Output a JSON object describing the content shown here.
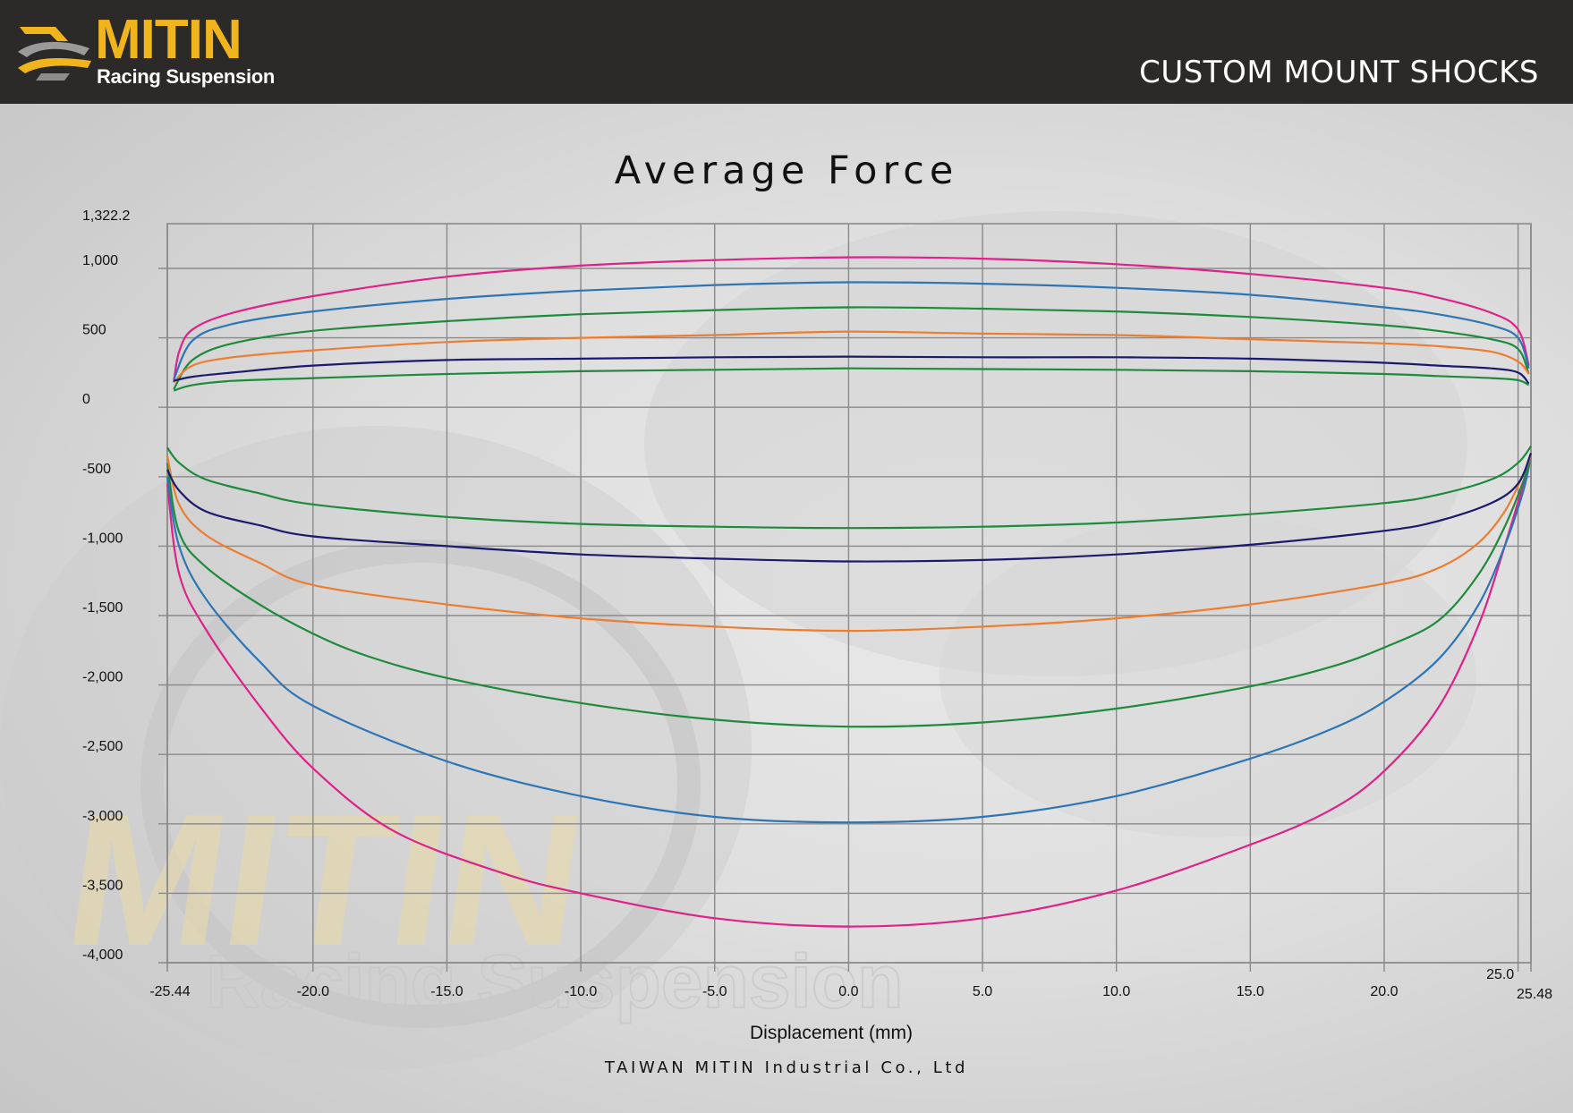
{
  "header": {
    "logo_text": "MITIN",
    "logo_subtext": "Racing Suspension",
    "section_title": "CUSTOM MOUNT SHOCKS"
  },
  "watermark": {
    "text": "MITIN",
    "subtext": "Racing Suspension"
  },
  "footer": {
    "company": "TAIWAN MITIN Industrial Co., Ltd"
  },
  "chart_data": {
    "type": "line",
    "title": "Average Force",
    "xlabel": "Displacement (mm)",
    "ylabel": "",
    "xlim": [
      -25.44,
      25.48
    ],
    "ylim": [
      -4000,
      1322.2
    ],
    "grid": true,
    "legend": "none",
    "x_ticks": [
      {
        "value": -25.44,
        "label": "-25.44"
      },
      {
        "value": -20,
        "label": "-20.0"
      },
      {
        "value": -15,
        "label": "-15.0"
      },
      {
        "value": -10,
        "label": "-10.0"
      },
      {
        "value": -5,
        "label": "-5.0"
      },
      {
        "value": 0,
        "label": "0.0"
      },
      {
        "value": 5,
        "label": "5.0"
      },
      {
        "value": 10,
        "label": "10.0"
      },
      {
        "value": 15,
        "label": "15.0"
      },
      {
        "value": 20,
        "label": "20.0"
      },
      {
        "value": 25,
        "label": "25.0"
      },
      {
        "value": 25.48,
        "label": "25.48"
      }
    ],
    "y_ticks": [
      {
        "value": 1322.2,
        "label": "1,322.2"
      },
      {
        "value": 1000,
        "label": "1,000"
      },
      {
        "value": 500,
        "label": "500"
      },
      {
        "value": 0,
        "label": "0"
      },
      {
        "value": -500,
        "label": "-500"
      },
      {
        "value": -1000,
        "label": "-1,000"
      },
      {
        "value": -1500,
        "label": "-1,500"
      },
      {
        "value": -2000,
        "label": "-2,000"
      },
      {
        "value": -2500,
        "label": "-2,500"
      },
      {
        "value": -3000,
        "label": "-3,000"
      },
      {
        "value": -3500,
        "label": "-3,500"
      },
      {
        "value": -4000,
        "label": "-4,000"
      }
    ],
    "series": [
      {
        "color": "#e0218a",
        "points": [
          [
            -25.2,
            180
          ],
          [
            -25,
            400
          ],
          [
            -24.5,
            560
          ],
          [
            -23,
            680
          ],
          [
            -20,
            800
          ],
          [
            -15,
            940
          ],
          [
            -10,
            1020
          ],
          [
            -5,
            1060
          ],
          [
            0,
            1080
          ],
          [
            5,
            1070
          ],
          [
            10,
            1030
          ],
          [
            15,
            960
          ],
          [
            20,
            860
          ],
          [
            22,
            790
          ],
          [
            24,
            680
          ],
          [
            25,
            560
          ],
          [
            25.4,
            300
          ]
        ]
      },
      {
        "color": "#2e75b6",
        "points": [
          [
            -25.2,
            200
          ],
          [
            -24.5,
            480
          ],
          [
            -23,
            600
          ],
          [
            -20,
            690
          ],
          [
            -15,
            780
          ],
          [
            -10,
            840
          ],
          [
            -5,
            880
          ],
          [
            0,
            900
          ],
          [
            5,
            890
          ],
          [
            10,
            860
          ],
          [
            15,
            810
          ],
          [
            20,
            720
          ],
          [
            22,
            670
          ],
          [
            24,
            590
          ],
          [
            25,
            500
          ],
          [
            25.4,
            280
          ]
        ]
      },
      {
        "color": "#1e8b3c",
        "points": [
          [
            -25.2,
            130
          ],
          [
            -24.5,
            340
          ],
          [
            -23,
            460
          ],
          [
            -20,
            550
          ],
          [
            -15,
            620
          ],
          [
            -10,
            670
          ],
          [
            -5,
            700
          ],
          [
            0,
            720
          ],
          [
            5,
            710
          ],
          [
            10,
            690
          ],
          [
            15,
            650
          ],
          [
            20,
            590
          ],
          [
            22,
            550
          ],
          [
            24,
            490
          ],
          [
            25,
            420
          ],
          [
            25.4,
            240
          ]
        ]
      },
      {
        "color": "#ed7d31",
        "points": [
          [
            -25.2,
            180
          ],
          [
            -24.5,
            300
          ],
          [
            -23,
            360
          ],
          [
            -20,
            410
          ],
          [
            -15,
            470
          ],
          [
            -10,
            500
          ],
          [
            -5,
            520
          ],
          [
            0,
            545
          ],
          [
            5,
            530
          ],
          [
            10,
            520
          ],
          [
            15,
            490
          ],
          [
            20,
            460
          ],
          [
            22,
            440
          ],
          [
            24,
            400
          ],
          [
            25,
            330
          ],
          [
            25.4,
            240
          ]
        ]
      },
      {
        "color": "#1a1a6e",
        "points": [
          [
            -25.2,
            190
          ],
          [
            -24.5,
            220
          ],
          [
            -23,
            250
          ],
          [
            -20,
            300
          ],
          [
            -15,
            340
          ],
          [
            -10,
            350
          ],
          [
            -5,
            360
          ],
          [
            0,
            365
          ],
          [
            5,
            360
          ],
          [
            10,
            360
          ],
          [
            15,
            350
          ],
          [
            20,
            320
          ],
          [
            22,
            300
          ],
          [
            24,
            280
          ],
          [
            25,
            250
          ],
          [
            25.4,
            170
          ]
        ]
      },
      {
        "color": "#1e8b3c",
        "points": [
          [
            -25.2,
            120
          ],
          [
            -24.5,
            160
          ],
          [
            -23,
            190
          ],
          [
            -20,
            210
          ],
          [
            -15,
            240
          ],
          [
            -10,
            260
          ],
          [
            -5,
            270
          ],
          [
            0,
            280
          ],
          [
            5,
            275
          ],
          [
            10,
            270
          ],
          [
            15,
            260
          ],
          [
            20,
            240
          ],
          [
            22,
            225
          ],
          [
            24,
            210
          ],
          [
            25,
            195
          ],
          [
            25.4,
            160
          ]
        ]
      },
      {
        "color": "#e0218a",
        "points": [
          [
            -25.44,
            -550
          ],
          [
            -25,
            -1200
          ],
          [
            -24,
            -1600
          ],
          [
            -22,
            -2150
          ],
          [
            -20,
            -2600
          ],
          [
            -17,
            -3050
          ],
          [
            -13,
            -3350
          ],
          [
            -10,
            -3500
          ],
          [
            -5,
            -3680
          ],
          [
            0,
            -3740
          ],
          [
            5,
            -3680
          ],
          [
            10,
            -3480
          ],
          [
            15,
            -3150
          ],
          [
            18,
            -2900
          ],
          [
            20,
            -2620
          ],
          [
            22,
            -2170
          ],
          [
            23.5,
            -1580
          ],
          [
            24.5,
            -1000
          ],
          [
            25.2,
            -550
          ],
          [
            25.48,
            -350
          ]
        ]
      },
      {
        "color": "#2e75b6",
        "points": [
          [
            -25.44,
            -500
          ],
          [
            -25,
            -1000
          ],
          [
            -24,
            -1380
          ],
          [
            -22,
            -1830
          ],
          [
            -20,
            -2150
          ],
          [
            -15,
            -2550
          ],
          [
            -10,
            -2800
          ],
          [
            -5,
            -2950
          ],
          [
            0,
            -2990
          ],
          [
            5,
            -2950
          ],
          [
            10,
            -2800
          ],
          [
            15,
            -2530
          ],
          [
            18,
            -2320
          ],
          [
            20,
            -2120
          ],
          [
            22,
            -1820
          ],
          [
            23.5,
            -1430
          ],
          [
            24.5,
            -1000
          ],
          [
            25.2,
            -600
          ],
          [
            25.48,
            -350
          ]
        ]
      },
      {
        "color": "#1e8b3c",
        "points": [
          [
            -25.44,
            -400
          ],
          [
            -25,
            -900
          ],
          [
            -24,
            -1150
          ],
          [
            -22,
            -1420
          ],
          [
            -20,
            -1630
          ],
          [
            -18,
            -1790
          ],
          [
            -15,
            -1950
          ],
          [
            -10,
            -2130
          ],
          [
            -5,
            -2250
          ],
          [
            0,
            -2300
          ],
          [
            5,
            -2270
          ],
          [
            10,
            -2170
          ],
          [
            15,
            -2010
          ],
          [
            18,
            -1870
          ],
          [
            20,
            -1730
          ],
          [
            22,
            -1540
          ],
          [
            23.5,
            -1210
          ],
          [
            24.5,
            -860
          ],
          [
            25.2,
            -530
          ],
          [
            25.48,
            -350
          ]
        ]
      },
      {
        "color": "#ed7d31",
        "points": [
          [
            -25.44,
            -350
          ],
          [
            -25,
            -700
          ],
          [
            -24,
            -920
          ],
          [
            -22,
            -1120
          ],
          [
            -20,
            -1280
          ],
          [
            -15,
            -1420
          ],
          [
            -10,
            -1520
          ],
          [
            -5,
            -1580
          ],
          [
            0,
            -1610
          ],
          [
            5,
            -1580
          ],
          [
            10,
            -1520
          ],
          [
            15,
            -1420
          ],
          [
            20,
            -1270
          ],
          [
            22,
            -1160
          ],
          [
            23.5,
            -980
          ],
          [
            24.5,
            -750
          ],
          [
            25.2,
            -480
          ],
          [
            25.48,
            -350
          ]
        ]
      },
      {
        "color": "#1a1a6e",
        "points": [
          [
            -25.44,
            -450
          ],
          [
            -25,
            -600
          ],
          [
            -24,
            -750
          ],
          [
            -22,
            -850
          ],
          [
            -20,
            -930
          ],
          [
            -15,
            -1000
          ],
          [
            -10,
            -1060
          ],
          [
            -5,
            -1090
          ],
          [
            0,
            -1110
          ],
          [
            5,
            -1100
          ],
          [
            10,
            -1060
          ],
          [
            15,
            -990
          ],
          [
            20,
            -890
          ],
          [
            22,
            -820
          ],
          [
            24,
            -690
          ],
          [
            25,
            -550
          ],
          [
            25.48,
            -330
          ]
        ]
      },
      {
        "color": "#1e8b3c",
        "points": [
          [
            -25.44,
            -290
          ],
          [
            -25,
            -400
          ],
          [
            -24,
            -520
          ],
          [
            -22,
            -620
          ],
          [
            -20,
            -700
          ],
          [
            -15,
            -790
          ],
          [
            -10,
            -840
          ],
          [
            -5,
            -860
          ],
          [
            0,
            -870
          ],
          [
            5,
            -860
          ],
          [
            10,
            -830
          ],
          [
            15,
            -770
          ],
          [
            20,
            -690
          ],
          [
            22,
            -630
          ],
          [
            24,
            -520
          ],
          [
            25,
            -400
          ],
          [
            25.48,
            -280
          ]
        ]
      }
    ]
  }
}
